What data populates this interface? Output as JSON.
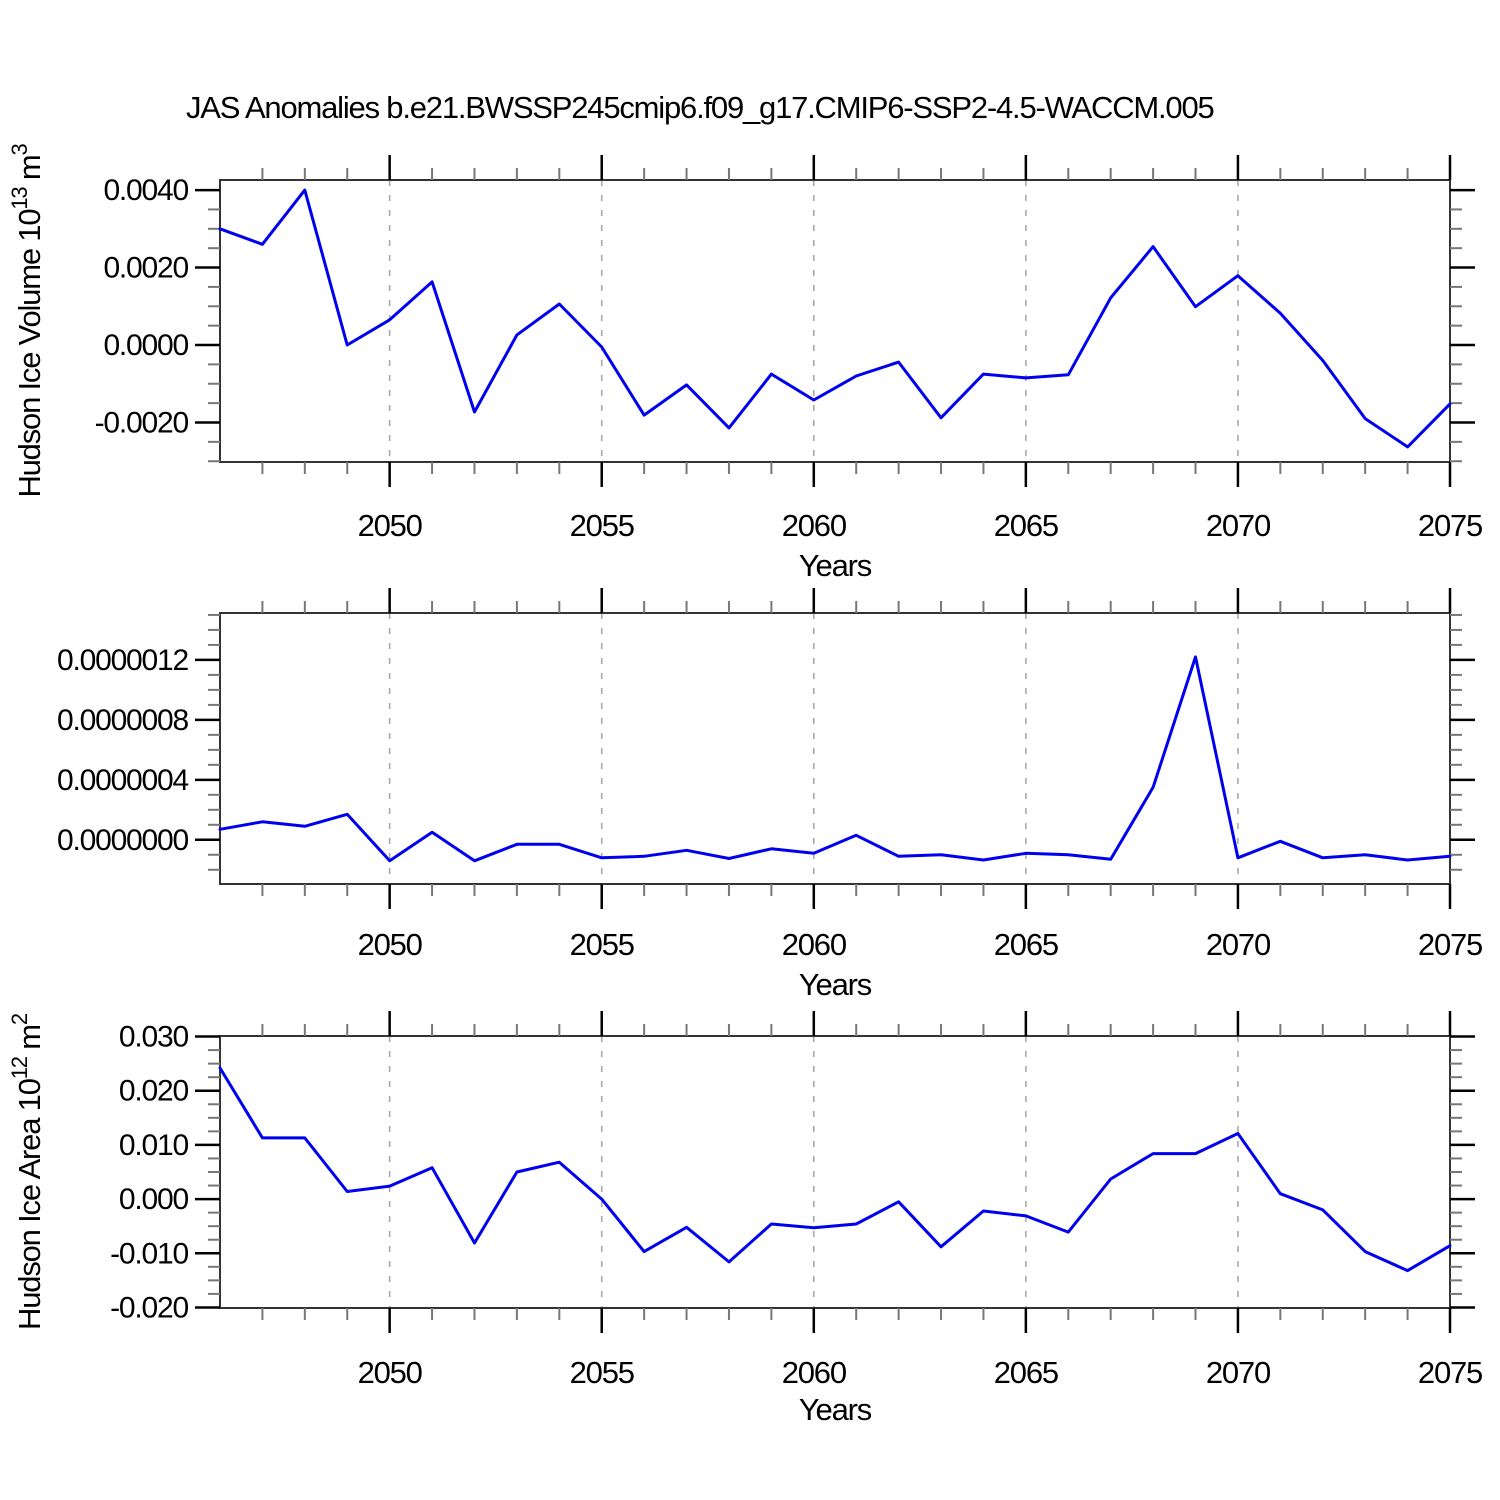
{
  "title": "JAS Anomalies b.e21.BWSSP245cmip6.f09_g17.CMIP6-SSP2-4.5-WACCM.005",
  "style": {
    "line_color": "#0000EE",
    "grid_color": "#AAAAAA",
    "frame_color": "#333333",
    "major_tick_color": "#000000",
    "minor_tick_color": "#777777",
    "text_color": "#000000",
    "background": "#FFFFFF"
  },
  "chart_data": [
    {
      "type": "line",
      "ylabel_parts": [
        {
          "text": "Hudson Ice Volume 10",
          "sup": false
        },
        {
          "text": "13",
          "sup": true
        },
        {
          "text": " m",
          "sup": false
        },
        {
          "text": "3",
          "sup": true
        }
      ],
      "xlabel": "Years",
      "x": [
        2046,
        2047,
        2048,
        2049,
        2050,
        2051,
        2052,
        2053,
        2054,
        2055,
        2056,
        2057,
        2058,
        2059,
        2060,
        2061,
        2062,
        2063,
        2064,
        2065,
        2066,
        2067,
        2068,
        2069,
        2070,
        2071,
        2072,
        2073,
        2074,
        2075
      ],
      "values": [
        0.003,
        0.0026,
        0.004,
        0.0,
        0.00065,
        0.00163,
        -0.00173,
        0.00026,
        0.00106,
        -5e-05,
        -0.00181,
        -0.00103,
        -0.00214,
        -0.00075,
        -0.00142,
        -0.0008,
        -0.00044,
        -0.00188,
        -0.00075,
        -0.00085,
        -0.00077,
        0.00122,
        0.00254,
        0.00099,
        0.00179,
        0.00082,
        -0.0004,
        -0.0019,
        -0.00263,
        -0.00152
      ],
      "xlim": [
        2046,
        2075
      ],
      "ylim": [
        -0.00302,
        0.00426
      ],
      "yticks": [
        {
          "value": 0.004,
          "label": "0.0040"
        },
        {
          "value": 0.002,
          "label": "0.0020"
        },
        {
          "value": 0.0,
          "label": "0.0000"
        },
        {
          "value": -0.002,
          "label": "-0.0020"
        }
      ],
      "y_minor_step": 0.0005,
      "xticks": [
        {
          "value": 2050,
          "label": "2050"
        },
        {
          "value": 2055,
          "label": "2055"
        },
        {
          "value": 2060,
          "label": "2060"
        },
        {
          "value": 2065,
          "label": "2065"
        },
        {
          "value": 2070,
          "label": "2070"
        },
        {
          "value": 2075,
          "label": "2075"
        }
      ],
      "x_minor_step": 1,
      "grid_x": [
        2050,
        2055,
        2060,
        2065,
        2070
      ],
      "grid_on": true,
      "legend": "none"
    },
    {
      "type": "line",
      "ylabel_parts": [],
      "xlabel": "Years",
      "x": [
        2046,
        2047,
        2048,
        2049,
        2050,
        2051,
        2052,
        2053,
        2054,
        2055,
        2056,
        2057,
        2058,
        2059,
        2060,
        2061,
        2062,
        2063,
        2064,
        2065,
        2066,
        2067,
        2068,
        2069,
        2070,
        2071,
        2072,
        2073,
        2074,
        2075
      ],
      "values": [
        7e-08,
        1.2e-07,
        9e-08,
        1.7e-07,
        -1.4e-07,
        5e-08,
        -1.4e-07,
        -3e-08,
        -3e-08,
        -1.2e-07,
        -1.1e-07,
        -7e-08,
        -1.25e-07,
        -6e-08,
        -9e-08,
        3e-08,
        -1.1e-07,
        -1e-07,
        -1.35e-07,
        -9e-08,
        -1e-07,
        -1.3e-07,
        3.5e-07,
        1.22e-06,
        -1.2e-07,
        -1e-08,
        -1.2e-07,
        -1e-07,
        -1.35e-07,
        -1.1e-07
      ],
      "xlim": [
        2046,
        2075
      ],
      "ylim": [
        -2.95e-07,
        1.513e-06
      ],
      "yticks": [
        {
          "value": 1.2e-06,
          "label": "0.0000012"
        },
        {
          "value": 8e-07,
          "label": "0.0000008"
        },
        {
          "value": 4e-07,
          "label": "0.0000004"
        },
        {
          "value": 0,
          "label": "0.0000000"
        }
      ],
      "y_minor_step": 1e-07,
      "xticks": [
        {
          "value": 2050,
          "label": "2050"
        },
        {
          "value": 2055,
          "label": "2055"
        },
        {
          "value": 2060,
          "label": "2060"
        },
        {
          "value": 2065,
          "label": "2065"
        },
        {
          "value": 2070,
          "label": "2070"
        },
        {
          "value": 2075,
          "label": "2075"
        }
      ],
      "x_minor_step": 1,
      "grid_x": [
        2050,
        2055,
        2060,
        2065,
        2070
      ],
      "grid_on": true,
      "legend": "none"
    },
    {
      "type": "line",
      "ylabel_parts": [
        {
          "text": "Hudson Ice Area 10",
          "sup": false
        },
        {
          "text": "12",
          "sup": true
        },
        {
          "text": " m",
          "sup": false
        },
        {
          "text": "2",
          "sup": true
        }
      ],
      "xlabel": "Years",
      "x": [
        2046,
        2047,
        2048,
        2049,
        2050,
        2051,
        2052,
        2053,
        2054,
        2055,
        2056,
        2057,
        2058,
        2059,
        2060,
        2061,
        2062,
        2063,
        2064,
        2065,
        2066,
        2067,
        2068,
        2069,
        2070,
        2071,
        2072,
        2073,
        2074,
        2075
      ],
      "values": [
        0.0242,
        0.0113,
        0.0113,
        0.0014,
        0.0024,
        0.0058,
        -0.0081,
        0.005,
        0.0068,
        0.0,
        -0.0097,
        -0.0052,
        -0.0116,
        -0.0046,
        -0.0053,
        -0.0046,
        -0.0005,
        -0.0088,
        -0.0022,
        -0.0031,
        -0.0061,
        0.0037,
        0.0084,
        0.0084,
        0.0121,
        0.001,
        -0.002,
        -0.0097,
        -0.0132,
        -0.0086
      ],
      "xlim": [
        2046,
        2075
      ],
      "ylim": [
        -0.0201,
        0.0301
      ],
      "yticks": [
        {
          "value": 0.03,
          "label": "0.030"
        },
        {
          "value": 0.02,
          "label": "0.020"
        },
        {
          "value": 0.01,
          "label": "0.010"
        },
        {
          "value": 0.0,
          "label": "0.000"
        },
        {
          "value": -0.01,
          "label": "-0.010"
        },
        {
          "value": -0.02,
          "label": "-0.020"
        }
      ],
      "y_minor_step": 0.0025,
      "xticks": [
        {
          "value": 2050,
          "label": "2050"
        },
        {
          "value": 2055,
          "label": "2055"
        },
        {
          "value": 2060,
          "label": "2060"
        },
        {
          "value": 2065,
          "label": "2065"
        },
        {
          "value": 2070,
          "label": "2070"
        },
        {
          "value": 2075,
          "label": "2075"
        }
      ],
      "x_minor_step": 1,
      "grid_x": [
        2050,
        2055,
        2060,
        2065,
        2070
      ],
      "grid_on": true,
      "legend": "none"
    }
  ]
}
